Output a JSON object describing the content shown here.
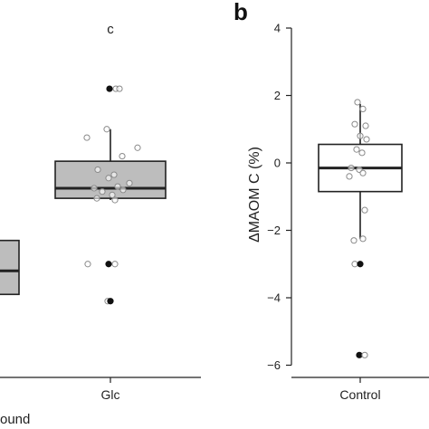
{
  "chart_data": [
    {
      "type": "box",
      "panel_label": "",
      "categories": [
        "Glc"
      ],
      "annotation": "c",
      "legend_fragment": "ound",
      "colors": {
        "box_fill": "#bdbdbd",
        "box_stroke": "#222222",
        "partial_box_fill": "#bdbdbd"
      },
      "partial_box": {
        "q1": -3.9,
        "median": -3.2,
        "q3": -2.3
      },
      "y_range": [
        -6.2,
        4.4
      ],
      "boxes": [
        {
          "category": "Glc",
          "q1": -1.05,
          "median": -0.75,
          "q3": 0.05,
          "whisker_low": -1.1,
          "whisker_high": 1.0,
          "points": [
            {
              "y": 2.2,
              "outlier": true
            },
            {
              "y": 2.2,
              "outlier": false
            },
            {
              "y": 2.2,
              "outlier": false
            },
            {
              "y": 1.0,
              "outlier": false
            },
            {
              "y": 0.75,
              "outlier": false
            },
            {
              "y": 0.45,
              "outlier": false
            },
            {
              "y": 0.2,
              "outlier": false
            },
            {
              "y": -0.2,
              "outlier": false
            },
            {
              "y": -0.35,
              "outlier": false
            },
            {
              "y": -0.45,
              "outlier": false
            },
            {
              "y": -0.6,
              "outlier": false
            },
            {
              "y": -0.7,
              "outlier": false
            },
            {
              "y": -0.75,
              "outlier": false
            },
            {
              "y": -0.8,
              "outlier": false
            },
            {
              "y": -0.85,
              "outlier": false
            },
            {
              "y": -0.95,
              "outlier": false
            },
            {
              "y": -1.05,
              "outlier": false
            },
            {
              "y": -1.1,
              "outlier": false
            },
            {
              "y": -3.0,
              "outlier": false
            },
            {
              "y": -3.0,
              "outlier": true
            },
            {
              "y": -3.0,
              "outlier": false
            },
            {
              "y": -4.1,
              "outlier": false
            },
            {
              "y": -4.1,
              "outlier": true
            }
          ]
        }
      ]
    },
    {
      "type": "box",
      "panel_label": "b",
      "categories": [
        "Control"
      ],
      "ylabel": "ΔMAOM C (%)",
      "y_range": [
        -6.2,
        4.4
      ],
      "yticks": [
        4,
        2,
        0,
        -2,
        -4,
        -6
      ],
      "ytick_labels": [
        "4",
        "2",
        "0",
        "−2",
        "−4",
        "−6"
      ],
      "colors": {
        "box_fill": "#ffffff",
        "box_stroke": "#222222"
      },
      "boxes": [
        {
          "category": "Control",
          "q1": -0.85,
          "median": -0.15,
          "q3": 0.55,
          "whisker_low": -2.25,
          "whisker_high": 1.75,
          "points": [
            {
              "y": 1.8,
              "outlier": false
            },
            {
              "y": 1.6,
              "outlier": false
            },
            {
              "y": 1.15,
              "outlier": false
            },
            {
              "y": 1.1,
              "outlier": false
            },
            {
              "y": 0.8,
              "outlier": false
            },
            {
              "y": 0.7,
              "outlier": false
            },
            {
              "y": 0.4,
              "outlier": false
            },
            {
              "y": 0.3,
              "outlier": false
            },
            {
              "y": -0.15,
              "outlier": false
            },
            {
              "y": -0.2,
              "outlier": false
            },
            {
              "y": -0.3,
              "outlier": false
            },
            {
              "y": -0.4,
              "outlier": false
            },
            {
              "y": -1.4,
              "outlier": false
            },
            {
              "y": -2.25,
              "outlier": false
            },
            {
              "y": -2.3,
              "outlier": false
            },
            {
              "y": -3.0,
              "outlier": false
            },
            {
              "y": -3.0,
              "outlier": true
            },
            {
              "y": -5.7,
              "outlier": true
            },
            {
              "y": -5.7,
              "outlier": false
            }
          ]
        }
      ]
    }
  ]
}
